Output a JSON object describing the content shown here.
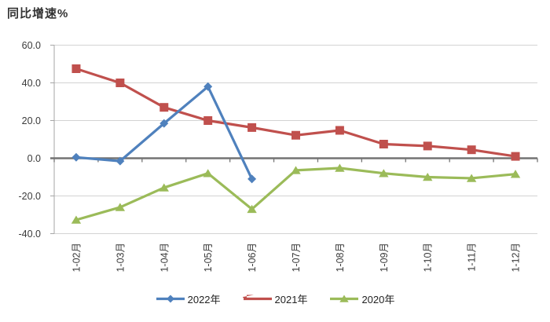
{
  "title": "同比增速%",
  "chart_data": {
    "type": "line",
    "title": "同比增速%",
    "ylabel": "同比增速%",
    "categories": [
      "1-02月",
      "1-03月",
      "1-04月",
      "1-05月",
      "1-06月",
      "1-07月",
      "1-08月",
      "1-09月",
      "1-10月",
      "1-11月",
      "1-12月"
    ],
    "series": [
      {
        "name": "2022年",
        "marker": "diamond",
        "color": "#4F81BD",
        "values": [
          0.5,
          -1.5,
          18.5,
          38.0,
          -11.0
        ]
      },
      {
        "name": "2021年",
        "marker": "square",
        "color": "#C0504D",
        "values": [
          47.5,
          40.0,
          27.0,
          20.0,
          16.3,
          12.2,
          14.8,
          7.5,
          6.5,
          4.5,
          1.0
        ]
      },
      {
        "name": "2020年",
        "marker": "triangle",
        "color": "#9BBB59",
        "values": [
          -32.7,
          -26.0,
          -15.6,
          -8.0,
          -27.0,
          -6.4,
          -5.2,
          -8.0,
          -10.0,
          -10.6,
          -8.4
        ]
      }
    ],
    "ylim": [
      -40,
      60
    ],
    "ytick_step": 20,
    "ytick_labels": [
      "60.0",
      "40.0",
      "20.0",
      "0.0",
      "-20.0",
      "-40.0"
    ],
    "grid": true,
    "legend_position": "bottom"
  },
  "colors": {
    "gridline": "#d3d3d3",
    "zero_axis": "#737373",
    "y_axis": "#a6a6a6",
    "axis_text": "#3a3a3a",
    "background": "#ffffff"
  }
}
